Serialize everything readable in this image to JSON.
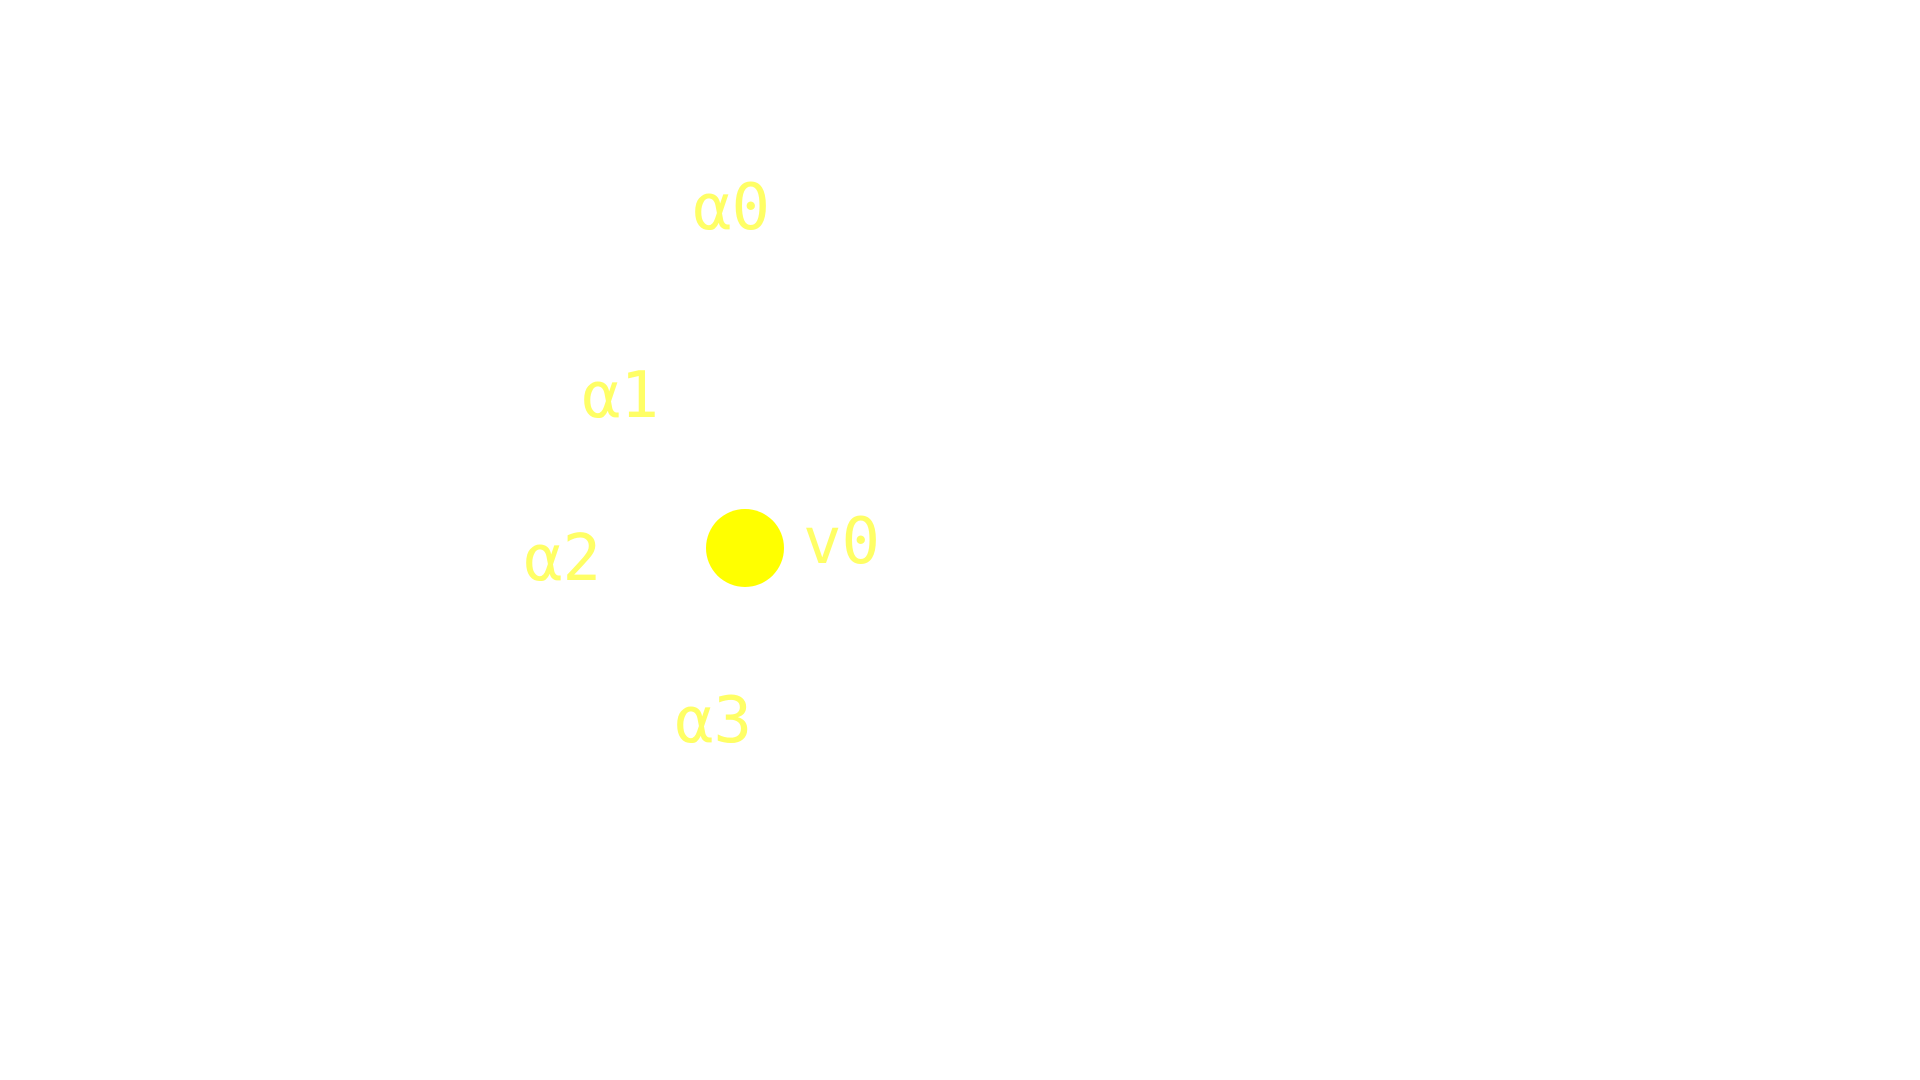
{
  "colors": {
    "label": "#ffff66",
    "node": "#ffff00"
  },
  "labels": {
    "a0": "α0",
    "a1": "α1",
    "a2": "α2",
    "a3": "α3"
  },
  "node": {
    "label": "v0"
  }
}
